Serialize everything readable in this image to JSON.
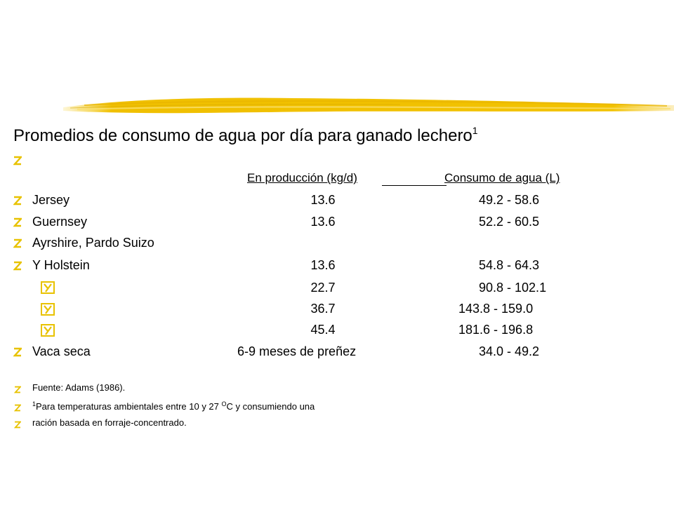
{
  "title": {
    "text": "Promedios de consumo de agua por día para ganado lechero",
    "sup": "1"
  },
  "accent_color": "#f2c200",
  "headers": {
    "production": "En producción (kg/d)",
    "water": "Consumo de agua (L)"
  },
  "rows": [
    {
      "breed": "Jersey",
      "production": "13.6",
      "water": "49.2 - 58.6"
    },
    {
      "breed": "Guernsey",
      "production": "13.6",
      "water": "52.2 - 60.5"
    },
    {
      "breed": "Ayrshire, Pardo Suizo",
      "production": "",
      "water": ""
    },
    {
      "breed": "Y Holstein",
      "production": "13.6",
      "water": "54.8 -  64.3"
    },
    {
      "breed": "",
      "production": "22.7",
      "water": "90.8 - 102.1"
    },
    {
      "breed": "",
      "production": "36.7",
      "water": "143.8 - 159.0"
    },
    {
      "breed": "",
      "production": "45.4",
      "water": "181.6 - 196.8"
    },
    {
      "breed": "Vaca seca",
      "production": "6-9 meses de preñez",
      "water": "34.0 -  49.2"
    }
  ],
  "notes": {
    "source": "Fuente: Adams (1986).",
    "footnote_sup": "1",
    "footnote_a": "Para temperaturas ambientales entre 10 y 27 ",
    "footnote_deg": "O",
    "footnote_b": "C y consumiendo una",
    "footnote_line2": "ración basada en forraje-concentrado."
  }
}
